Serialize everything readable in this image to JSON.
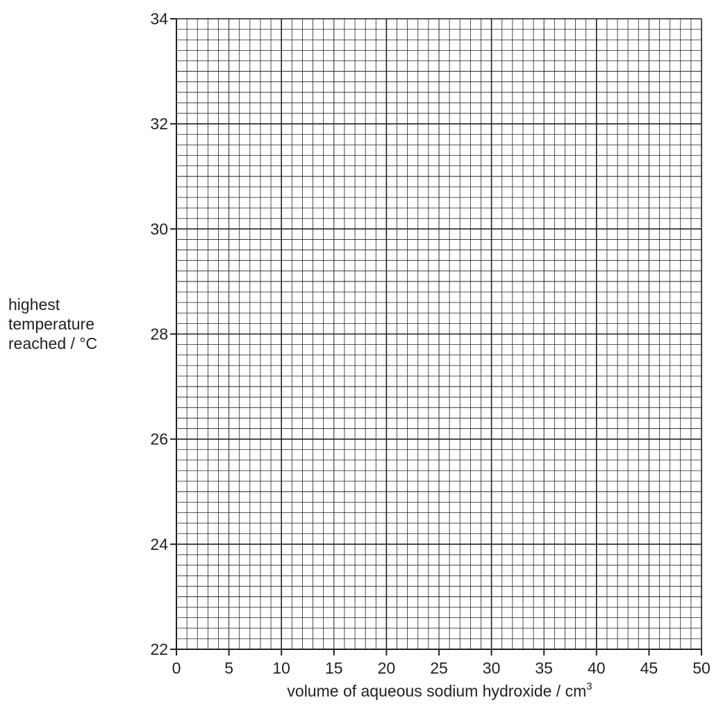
{
  "chart_data": {
    "type": "scatter",
    "title": "",
    "xlabel": "volume of aqueous sodium hydroxide / cm",
    "xlabel_superscript": "3",
    "ylabel_lines": [
      "highest",
      "temperature",
      "reached / °C"
    ],
    "xlim": [
      0,
      50
    ],
    "ylim": [
      22,
      34
    ],
    "x_ticks": [
      0,
      5,
      10,
      15,
      20,
      25,
      30,
      35,
      40,
      45,
      50
    ],
    "y_ticks": [
      22,
      24,
      26,
      28,
      30,
      32,
      34
    ],
    "x_major_gridline_step": 10,
    "y_major_gridline_step": 2,
    "minor_divisions_per_major": 10,
    "grid": true,
    "series": [],
    "colors": {
      "ink": "#231f20"
    }
  }
}
